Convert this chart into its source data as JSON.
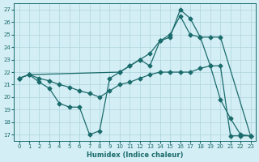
{
  "xlabel": "Humidex (Indice chaleur)",
  "xlim": [
    -0.5,
    23.5
  ],
  "ylim": [
    16.5,
    27.5
  ],
  "yticks": [
    17,
    18,
    19,
    20,
    21,
    22,
    23,
    24,
    25,
    26,
    27
  ],
  "xticks": [
    0,
    1,
    2,
    3,
    4,
    5,
    6,
    7,
    8,
    9,
    10,
    11,
    12,
    13,
    14,
    15,
    16,
    17,
    18,
    19,
    20,
    21,
    22,
    23
  ],
  "bg_color": "#d4eef5",
  "grid_color": "#aed4dc",
  "line_color": "#1a6b6b",
  "series": [
    {
      "x": [
        0,
        1,
        2,
        3,
        4,
        5,
        6,
        7,
        8,
        9,
        10,
        11,
        12,
        13,
        14,
        15,
        16,
        17,
        18,
        19,
        20,
        21,
        22,
        23
      ],
      "y": [
        21.5,
        21.8,
        21.2,
        20.7,
        19.5,
        19.2,
        19.2,
        17.0,
        17.3,
        21.5,
        22.0,
        22.5,
        23.0,
        22.5,
        24.5,
        24.8,
        27.0,
        26.3,
        24.8,
        22.5,
        19.8,
        18.3,
        17.0,
        16.9
      ]
    },
    {
      "x": [
        0,
        1,
        10,
        11,
        12,
        13,
        14,
        15,
        16,
        17,
        18,
        19,
        20,
        23
      ],
      "y": [
        21.5,
        21.8,
        22.0,
        22.5,
        23.0,
        23.5,
        24.5,
        25.0,
        26.5,
        25.0,
        24.8,
        24.8,
        24.8,
        16.9
      ]
    },
    {
      "x": [
        0,
        1,
        2,
        3,
        4,
        5,
        6,
        7,
        8,
        9,
        10,
        11,
        12,
        13,
        14,
        15,
        16,
        17,
        18,
        19,
        20,
        21,
        22,
        23
      ],
      "y": [
        21.5,
        21.8,
        21.5,
        21.3,
        21.0,
        20.8,
        20.5,
        20.3,
        20.0,
        20.5,
        21.0,
        21.2,
        21.5,
        21.8,
        22.0,
        22.0,
        22.0,
        22.0,
        22.3,
        22.5,
        22.5,
        16.9,
        16.9,
        16.9
      ]
    }
  ]
}
